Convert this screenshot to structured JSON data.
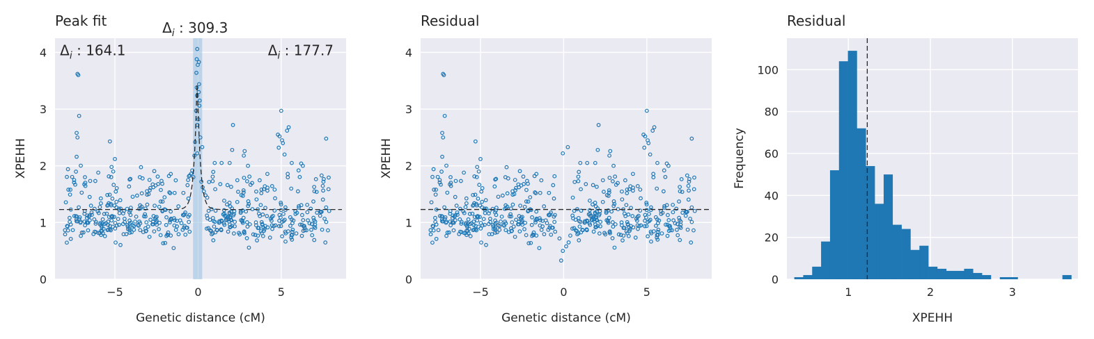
{
  "figure": {
    "background": "#ffffff"
  },
  "style": {
    "face": "#eaeaf2",
    "grid": "#ffffff",
    "accent": "#1f77b4",
    "refline": "#262626",
    "band": "#9ec3e3"
  },
  "chart_data": [
    {
      "type": "scatter",
      "title": "Peak fit",
      "xlabel": "Genetic distance (cM)",
      "ylabel": "XPEHH",
      "xlim": [
        -8.6,
        8.9
      ],
      "ylim": [
        0,
        4.25
      ],
      "xticks": [
        -5,
        0,
        5
      ],
      "xtick_labels": [
        "−5",
        "0",
        "5"
      ],
      "yticks": [
        0,
        1,
        2,
        3,
        4
      ],
      "ytick_labels": [
        "0",
        "1",
        "2",
        "3",
        "4"
      ],
      "grid": true,
      "baseline": 1.23,
      "peak": {
        "center": -0.05,
        "height": 3.6,
        "band": [
          -0.3,
          0.25
        ]
      },
      "annotations": [
        {
          "text": "Δ",
          "sub": "i",
          "rest": " : 309.3",
          "x": -2.15,
          "y": 4.35
        },
        {
          "text": "Δ",
          "sub": "i",
          "rest": " : 164.1",
          "x": -8.3,
          "y": 3.95
        },
        {
          "text": "Δ",
          "sub": "i",
          "rest": " : 177.7",
          "x": 4.2,
          "y": 3.95
        }
      ],
      "peak_points": [
        [
          -0.05,
          4.06
        ],
        [
          -0.08,
          3.88
        ],
        [
          0.05,
          3.83
        ],
        [
          -0.02,
          3.78
        ],
        [
          -0.1,
          3.64
        ],
        [
          0.06,
          3.44
        ],
        [
          -0.08,
          3.38
        ],
        [
          0.04,
          3.3
        ],
        [
          -0.06,
          3.24
        ],
        [
          0.1,
          3.15
        ],
        [
          0.08,
          3.06
        ],
        [
          -0.12,
          2.97
        ],
        [
          0.02,
          2.82
        ],
        [
          -0.04,
          2.72
        ],
        [
          -0.18,
          2.42
        ],
        [
          0.14,
          2.5
        ],
        [
          -0.22,
          2.18
        ],
        [
          -0.35,
          1.92
        ],
        [
          -0.42,
          1.86
        ],
        [
          -0.5,
          1.83
        ],
        [
          -0.28,
          1.8
        ],
        [
          0.2,
          1.72
        ],
        [
          0.28,
          1.62
        ],
        [
          -0.6,
          1.75
        ],
        [
          0.35,
          1.55
        ],
        [
          0.45,
          1.48
        ]
      ],
      "outliers": [
        [
          -7.25,
          3.62
        ],
        [
          -7.2,
          3.6
        ],
        [
          -7.15,
          2.88
        ],
        [
          -7.3,
          2.58
        ],
        [
          -7.25,
          2.5
        ],
        [
          -7.3,
          2.16
        ],
        [
          -5.3,
          2.43
        ],
        [
          -5.0,
          2.12
        ],
        [
          -5.2,
          1.98
        ],
        [
          -5.1,
          1.9
        ],
        [
          -6.0,
          1.88
        ],
        [
          2.1,
          2.72
        ],
        [
          2.05,
          2.28
        ],
        [
          1.9,
          2.05
        ],
        [
          2.8,
          2.26
        ],
        [
          2.75,
          2.18
        ],
        [
          3.0,
          2.0
        ],
        [
          5.0,
          2.97
        ],
        [
          4.8,
          2.55
        ],
        [
          4.9,
          2.52
        ],
        [
          5.05,
          2.45
        ],
        [
          5.1,
          2.4
        ],
        [
          4.85,
          2.32
        ],
        [
          5.2,
          2.2
        ],
        [
          5.45,
          2.68
        ],
        [
          5.35,
          2.62
        ],
        [
          7.7,
          2.48
        ],
        [
          6.2,
          2.04
        ],
        [
          6.3,
          2.0
        ],
        [
          -0.05,
          2.22
        ],
        [
          0.25,
          2.33
        ],
        [
          1.0,
          2.05
        ],
        [
          -1.75,
          1.82
        ],
        [
          -3.5,
          1.8
        ],
        [
          -6.8,
          1.8
        ],
        [
          -7.45,
          1.75
        ]
      ]
    },
    {
      "type": "scatter",
      "title": "Residual",
      "xlabel": "Genetic distance (cM)",
      "ylabel": "XPEHH",
      "xlim": [
        -8.6,
        8.9
      ],
      "ylim": [
        0,
        4.25
      ],
      "xticks": [
        -5,
        0,
        5
      ],
      "xtick_labels": [
        "−5",
        "0",
        "5"
      ],
      "yticks": [
        0,
        1,
        2,
        3,
        4
      ],
      "ytick_labels": [
        "0",
        "1",
        "2",
        "3",
        "4"
      ],
      "grid": true,
      "baseline": 1.23,
      "dip_points": [
        [
          -0.15,
          0.33
        ],
        [
          -0.05,
          0.5
        ],
        [
          0.15,
          0.58
        ],
        [
          0.3,
          0.65
        ],
        [
          -0.25,
          0.72
        ],
        [
          0.4,
          0.77
        ]
      ]
    },
    {
      "type": "bar",
      "subtype": "histogram",
      "title": "Residual",
      "xlabel": "XPEHH",
      "ylabel": "Frequency",
      "xlim": [
        0.25,
        3.8
      ],
      "ylim": [
        0,
        115
      ],
      "xticks": [
        1,
        2,
        3
      ],
      "xtick_labels": [
        "1",
        "2",
        "3"
      ],
      "yticks": [
        0,
        20,
        40,
        60,
        80,
        100
      ],
      "ytick_labels": [
        "0",
        "20",
        "40",
        "60",
        "80",
        "100"
      ],
      "grid": true,
      "bin_start": 0.34,
      "bin_width": 0.109,
      "counts": [
        1,
        2,
        6,
        18,
        52,
        104,
        109,
        72,
        54,
        36,
        50,
        26,
        24,
        14,
        16,
        6,
        5,
        4,
        4,
        5,
        3,
        2,
        0,
        1,
        1,
        0,
        0,
        0,
        0,
        0,
        2
      ],
      "mean_line": 1.23
    }
  ]
}
